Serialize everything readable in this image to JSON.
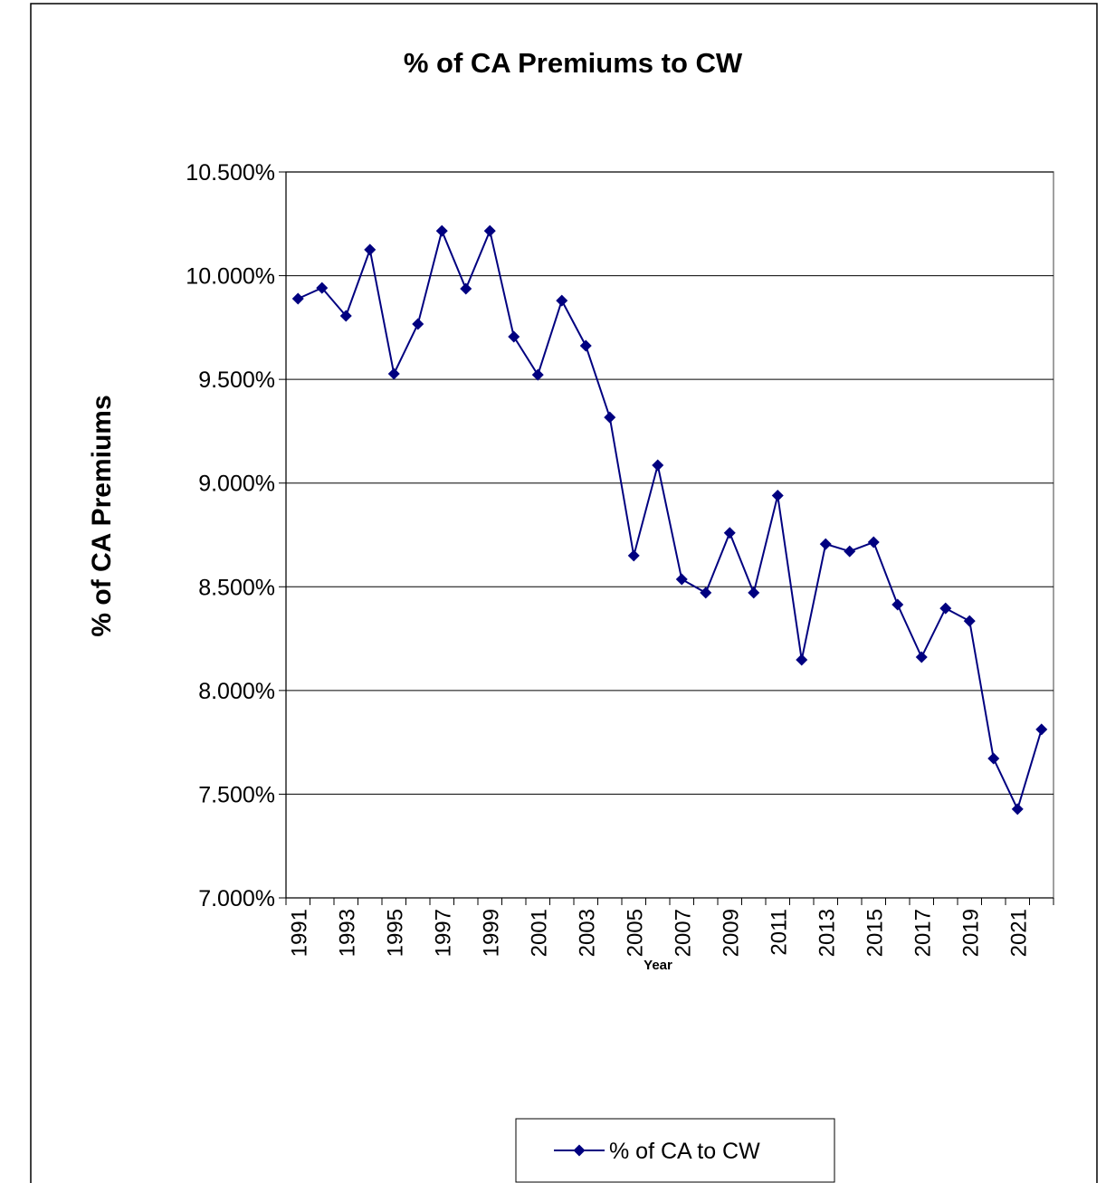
{
  "chart_data": {
    "type": "line",
    "title": "% of CA Premiums to CW",
    "y_label": "% of CA Premiums",
    "x_label": "Year",
    "categories": [
      "1991",
      null,
      "1993",
      null,
      "1995",
      null,
      "1997",
      null,
      "1999",
      null,
      "2001",
      null,
      "2003",
      null,
      "2005",
      null,
      "2007",
      null,
      "2009",
      null,
      "2011",
      null,
      "2013",
      null,
      "2015",
      null,
      "2017",
      null,
      "2019",
      null,
      "2021",
      null
    ],
    "series": [
      {
        "name": "% of CA to CW",
        "color": "#000080",
        "values": [
          9.889,
          9.941,
          9.806,
          10.125,
          9.527,
          9.767,
          10.216,
          9.937,
          10.216,
          9.706,
          9.522,
          9.88,
          9.662,
          9.317,
          8.65,
          9.086,
          8.536,
          8.471,
          8.76,
          8.471,
          8.94,
          8.148,
          8.706,
          8.671,
          8.715,
          8.414,
          8.161,
          8.396,
          8.335,
          7.672,
          7.428,
          7.812
        ]
      }
    ],
    "ylim": [
      7,
      10.5
    ],
    "yticks": [
      {
        "value": 7,
        "label": "7.000%"
      },
      {
        "value": 7.5,
        "label": "7.500%"
      },
      {
        "value": 8,
        "label": "8.000%"
      },
      {
        "value": 8.5,
        "label": "8.500%"
      },
      {
        "value": 9,
        "label": "9.000%"
      },
      {
        "value": 9.5,
        "label": "9.500%"
      },
      {
        "value": 10,
        "label": "10.000%"
      },
      {
        "value": 10.5,
        "label": "10.500%"
      }
    ],
    "grid": true,
    "legend": "bottom"
  }
}
